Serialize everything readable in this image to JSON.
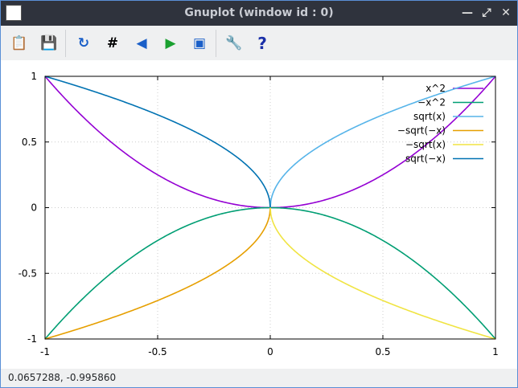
{
  "window": {
    "title": "Gnuplot (window id : 0)"
  },
  "toolbar": {
    "buttons": [
      {
        "name": "copy-clipboard",
        "icon": "clipboard-icon"
      },
      {
        "name": "print",
        "icon": "save-print-icon"
      },
      {
        "name": "replot",
        "icon": "refresh-icon"
      },
      {
        "name": "grid",
        "icon": "grid-icon"
      },
      {
        "name": "previous-zoom",
        "icon": "zoom-back-icon"
      },
      {
        "name": "next-zoom",
        "icon": "zoom-forward-icon"
      },
      {
        "name": "autoscale",
        "icon": "zoom-fit-icon"
      },
      {
        "name": "settings",
        "icon": "wrench-icon"
      },
      {
        "name": "help",
        "icon": "help-icon",
        "glyph": "?"
      }
    ]
  },
  "status": {
    "coords": "0.0657288, -0.995860"
  },
  "colors": {
    "x2": "#9400d3",
    "negx2": "#009e73",
    "sqrtx": "#56b4e9",
    "negsqrtnegx": "#e69f00",
    "negsqrtx": "#f0e442",
    "sqrtnegx": "#0072b2"
  },
  "chart_data": {
    "type": "line",
    "xlim": [
      -1,
      1
    ],
    "ylim": [
      -1,
      1
    ],
    "xticks": [
      "-1",
      "-0.5",
      "0",
      "0.5",
      "1"
    ],
    "yticks": [
      "-1",
      "-0.5",
      "0",
      "0.5",
      "1"
    ],
    "grid": true,
    "legend_placement": "top-right",
    "series": [
      {
        "name": "x^2",
        "expr": "x^2",
        "domain": [
          -1,
          1
        ],
        "color": "#9400d3"
      },
      {
        "name": "−x^2",
        "expr": "-x^2",
        "domain": [
          -1,
          1
        ],
        "color": "#009e73"
      },
      {
        "name": "sqrt(x)",
        "expr": "sqrt(x)",
        "domain": [
          0,
          1
        ],
        "color": "#56b4e9"
      },
      {
        "name": "−sqrt(−x)",
        "expr": "-sqrt(-x)",
        "domain": [
          -1,
          0
        ],
        "color": "#e69f00"
      },
      {
        "name": "−sqrt(x)",
        "expr": "-sqrt(x)",
        "domain": [
          0,
          1
        ],
        "color": "#f0e442"
      },
      {
        "name": "sqrt(−x)",
        "expr": "sqrt(-x)",
        "domain": [
          -1,
          0
        ],
        "color": "#0072b2"
      }
    ]
  }
}
